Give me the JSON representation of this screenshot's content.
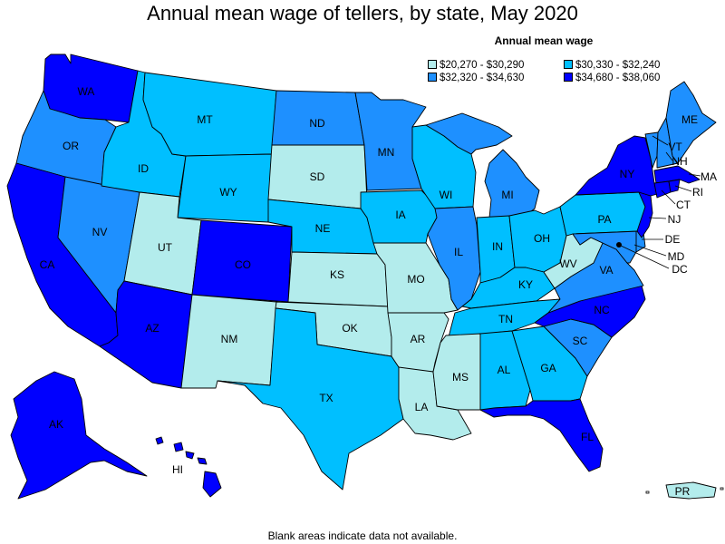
{
  "title": "Annual mean wage of tellers, by state, May 2020",
  "legend": {
    "title": "Annual mean wage",
    "items": [
      {
        "label": "$20,270 - $30,290",
        "color": "#b3ecec"
      },
      {
        "label": "$30,330 - $32,240",
        "color": "#00bfff"
      },
      {
        "label": "$32,320 - $34,630",
        "color": "#1e90ff"
      },
      {
        "label": "$34,680 - $38,060",
        "color": "#0000ff"
      }
    ]
  },
  "footnote": "Blank areas indicate data not available.",
  "states": {
    "WA": {
      "label": "WA",
      "tier": 3
    },
    "OR": {
      "label": "OR",
      "tier": 2
    },
    "CA": {
      "label": "CA",
      "tier": 3
    },
    "NV": {
      "label": "NV",
      "tier": 2
    },
    "ID": {
      "label": "ID",
      "tier": 1
    },
    "MT": {
      "label": "MT",
      "tier": 1
    },
    "WY": {
      "label": "WY",
      "tier": 1
    },
    "UT": {
      "label": "UT",
      "tier": 0
    },
    "CO": {
      "label": "CO",
      "tier": 3
    },
    "AZ": {
      "label": "AZ",
      "tier": 3
    },
    "NM": {
      "label": "NM",
      "tier": 0
    },
    "ND": {
      "label": "ND",
      "tier": 2
    },
    "SD": {
      "label": "SD",
      "tier": 0
    },
    "NE": {
      "label": "NE",
      "tier": 1
    },
    "KS": {
      "label": "KS",
      "tier": 0
    },
    "OK": {
      "label": "OK",
      "tier": 0
    },
    "TX": {
      "label": "TX",
      "tier": 1
    },
    "MN": {
      "label": "MN",
      "tier": 2
    },
    "IA": {
      "label": "IA",
      "tier": 1
    },
    "MO": {
      "label": "MO",
      "tier": 0
    },
    "AR": {
      "label": "AR",
      "tier": 0
    },
    "LA": {
      "label": "LA",
      "tier": 0
    },
    "WI": {
      "label": "WI",
      "tier": 1
    },
    "IL": {
      "label": "IL",
      "tier": 2
    },
    "MI": {
      "label": "MI",
      "tier": 2
    },
    "IN": {
      "label": "IN",
      "tier": 1
    },
    "OH": {
      "label": "OH",
      "tier": 1
    },
    "KY": {
      "label": "KY",
      "tier": 1
    },
    "TN": {
      "label": "TN",
      "tier": 1
    },
    "MS": {
      "label": "MS",
      "tier": 0
    },
    "AL": {
      "label": "AL",
      "tier": 1
    },
    "GA": {
      "label": "GA",
      "tier": 1
    },
    "FL": {
      "label": "FL",
      "tier": 3
    },
    "SC": {
      "label": "SC",
      "tier": 2
    },
    "NC": {
      "label": "NC",
      "tier": 3
    },
    "VA": {
      "label": "VA",
      "tier": 2
    },
    "WV": {
      "label": "WV",
      "tier": 0
    },
    "PA": {
      "label": "PA",
      "tier": 1
    },
    "NY": {
      "label": "NY",
      "tier": 3
    },
    "VT": {
      "label": "VT",
      "tier": 2
    },
    "NH": {
      "label": "NH",
      "tier": 2
    },
    "ME": {
      "label": "ME",
      "tier": 2
    },
    "MA": {
      "label": "MA",
      "tier": 3
    },
    "RI": {
      "label": "RI",
      "tier": 3
    },
    "CT": {
      "label": "CT",
      "tier": 3
    },
    "NJ": {
      "label": "NJ",
      "tier": 3
    },
    "DE": {
      "label": "DE",
      "tier": 2
    },
    "MD": {
      "label": "MD",
      "tier": 2
    },
    "DC": {
      "label": "DC",
      "tier": 3
    },
    "AK": {
      "label": "AK",
      "tier": 3
    },
    "HI": {
      "label": "HI",
      "tier": 3
    },
    "PR": {
      "label": "PR",
      "tier": 0
    }
  }
}
